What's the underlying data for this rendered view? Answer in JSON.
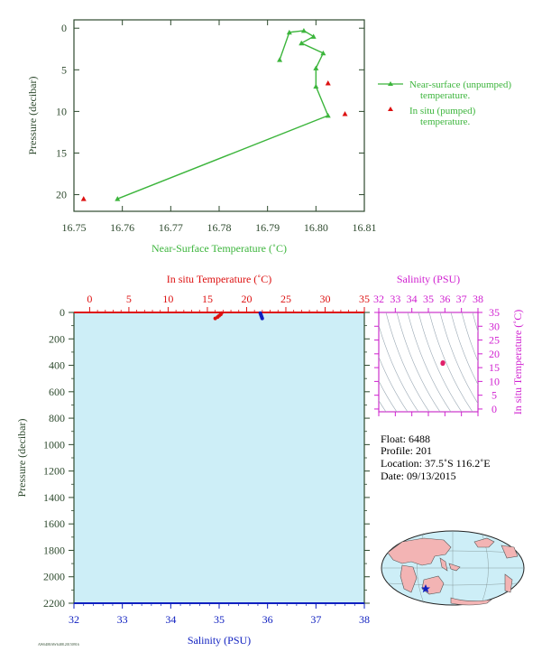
{
  "colors": {
    "green": "#3cb53c",
    "red": "#dd1111",
    "blue": "#1020c0",
    "magenta": "#d020d0",
    "plot_bg": "#cdeef7",
    "axis_dark": "#2e4a2e"
  },
  "chart_data": [
    {
      "type": "line",
      "xlabel": "Near-Surface Temperature (˚C)",
      "ylabel": "Pressure (decibar)",
      "xlim": [
        16.75,
        16.81
      ],
      "ylim": [
        -1,
        22
      ],
      "y_inverted": true,
      "x_ticks": [
        "16.75",
        "16.76",
        "16.77",
        "16.78",
        "16.79",
        "16.80",
        "16.81"
      ],
      "y_ticks": [
        "0",
        "5",
        "10",
        "15",
        "20"
      ],
      "legend_position": "right",
      "series": [
        {
          "name": "Near-surface (unpumped) temperature.",
          "style": "line-triangle",
          "color": "green",
          "points": [
            {
              "x": 16.759,
              "y": 20.5
            },
            {
              "x": 16.8025,
              "y": 10.5
            },
            {
              "x": 16.8,
              "y": 7.0
            },
            {
              "x": 16.8,
              "y": 4.8
            },
            {
              "x": 16.8015,
              "y": 3.0
            },
            {
              "x": 16.797,
              "y": 1.8
            },
            {
              "x": 16.7995,
              "y": 1.0
            },
            {
              "x": 16.7975,
              "y": 0.3
            },
            {
              "x": 16.7945,
              "y": 0.5
            },
            {
              "x": 16.7925,
              "y": 3.8
            }
          ]
        },
        {
          "name": "In situ (pumped) temperature.",
          "style": "triangle",
          "color": "red",
          "points": [
            {
              "x": 16.752,
              "y": 20.5
            },
            {
              "x": 16.8025,
              "y": 6.6
            },
            {
              "x": 16.806,
              "y": 10.3
            }
          ]
        }
      ]
    },
    {
      "type": "scatter",
      "title_top": "In situ Temperature (˚C)",
      "xlabel": "Salinity (PSU)",
      "ylabel": "Pressure (decibar)",
      "temp_lim": [
        -2,
        35
      ],
      "temp_ticks": [
        "0",
        "5",
        "10",
        "15",
        "20",
        "25",
        "30",
        "35"
      ],
      "sal_lim": [
        32,
        38
      ],
      "sal_ticks": [
        "32",
        "33",
        "34",
        "35",
        "36",
        "37",
        "38"
      ],
      "ylim": [
        0,
        2200
      ],
      "y_inverted": true,
      "y_ticks": [
        "0",
        "200",
        "400",
        "600",
        "800",
        "1000",
        "1200",
        "1400",
        "1600",
        "1800",
        "2000",
        "2200"
      ],
      "series": [
        {
          "name": "In situ Temperature",
          "color": "red",
          "points": [
            {
              "x": 16.8,
              "y": 5
            },
            {
              "x": 16.7,
              "y": 15
            },
            {
              "x": 16.5,
              "y": 25
            },
            {
              "x": 16.3,
              "y": 35
            },
            {
              "x": 16.0,
              "y": 45
            }
          ]
        },
        {
          "name": "Salinity",
          "color": "blue",
          "points": [
            {
              "x": 35.85,
              "y": 5
            },
            {
              "x": 35.86,
              "y": 15
            },
            {
              "x": 35.87,
              "y": 25
            },
            {
              "x": 35.88,
              "y": 35
            },
            {
              "x": 35.89,
              "y": 45
            }
          ]
        }
      ]
    },
    {
      "type": "scatter",
      "title_top": "Salinity (PSU)",
      "ylabel": "In situ Temperature (˚C)",
      "xlim": [
        32,
        38
      ],
      "x_ticks": [
        "32",
        "33",
        "34",
        "35",
        "36",
        "37",
        "38"
      ],
      "ylim": [
        -1,
        35
      ],
      "y_ticks": [
        "0",
        "5",
        "10",
        "15",
        "20",
        "25",
        "30",
        "35"
      ],
      "points": [
        {
          "x": 35.88,
          "y": 16.8
        },
        {
          "x": 35.87,
          "y": 16.5
        }
      ]
    }
  ],
  "info": {
    "float": "Float:  6488",
    "profile": "Profile:  201",
    "location": "Location:  37.5˚S  116.2˚E",
    "date": "Date:  09/13/2015"
  },
  "footer_code": "AW6488AW6488.20150916"
}
